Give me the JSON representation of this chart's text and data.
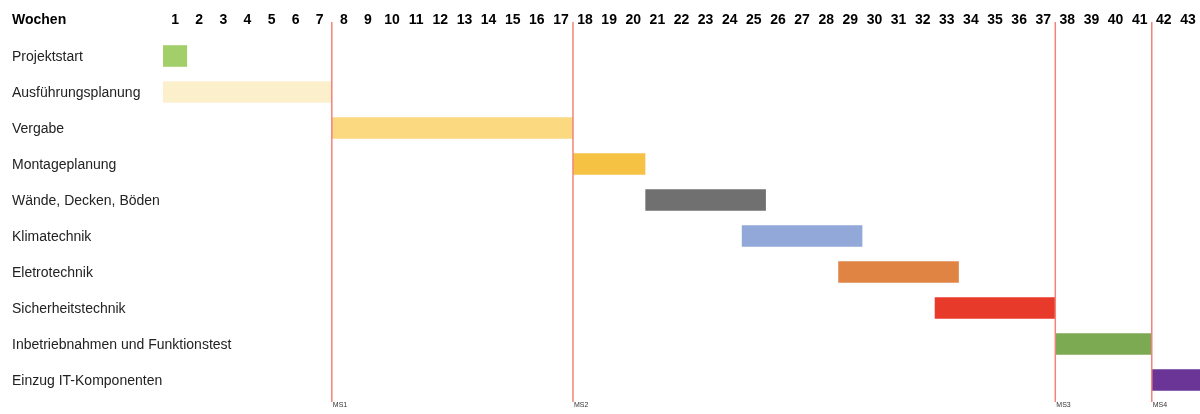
{
  "chart_data": {
    "type": "bar",
    "orientation": "horizontal",
    "xlabel": "Wochen",
    "categories": [
      "Projektstart",
      "Ausführungsplanung",
      "Vergabe",
      "Montageplanung",
      "Wände, Decken, Böden",
      "Klimatechnik",
      "Eletrotechnik",
      "Sicherheitstechnik",
      "Inbetriebnahmen und Funktionstest",
      "Einzug IT-Komponenten"
    ],
    "base": [
      0,
      0,
      7,
      17,
      20,
      24,
      28,
      32,
      37,
      41
    ],
    "values": [
      1,
      7,
      10,
      3,
      5,
      5,
      5,
      5,
      4,
      2
    ],
    "colors": [
      "#a3cf6a",
      "#fcf0cc",
      "#fbd981",
      "#f6c244",
      "#707070",
      "#91a8d8",
      "#e08443",
      "#e83a2b",
      "#7caa52",
      "#6a3596"
    ],
    "xlim": [
      0,
      43
    ],
    "xticks": [
      {
        "value": 0.5,
        "label": "1"
      },
      {
        "value": 1.5,
        "label": "2"
      },
      {
        "value": 2.5,
        "label": "3"
      },
      {
        "value": 3.5,
        "label": "4"
      },
      {
        "value": 4.5,
        "label": "5"
      },
      {
        "value": 5.5,
        "label": "6"
      },
      {
        "value": 6.5,
        "label": "7"
      },
      {
        "value": 7.5,
        "label": "8"
      },
      {
        "value": 8.5,
        "label": "9"
      },
      {
        "value": 9.5,
        "label": "10"
      },
      {
        "value": 10.5,
        "label": "11"
      },
      {
        "value": 11.5,
        "label": "12"
      },
      {
        "value": 12.5,
        "label": "13"
      },
      {
        "value": 13.5,
        "label": "14"
      },
      {
        "value": 14.5,
        "label": "15"
      },
      {
        "value": 15.5,
        "label": "16"
      },
      {
        "value": 16.5,
        "label": "17"
      },
      {
        "value": 17.5,
        "label": "18"
      },
      {
        "value": 18.5,
        "label": "19"
      },
      {
        "value": 19.5,
        "label": "20"
      },
      {
        "value": 20.5,
        "label": "21"
      },
      {
        "value": 21.5,
        "label": "22"
      },
      {
        "value": 22.5,
        "label": "23"
      },
      {
        "value": 23.5,
        "label": "24"
      },
      {
        "value": 24.5,
        "label": "25"
      },
      {
        "value": 25.5,
        "label": "26"
      },
      {
        "value": 26.5,
        "label": "27"
      },
      {
        "value": 27.5,
        "label": "28"
      },
      {
        "value": 28.5,
        "label": "29"
      },
      {
        "value": 29.5,
        "label": "30"
      },
      {
        "value": 30.5,
        "label": "31"
      },
      {
        "value": 31.5,
        "label": "32"
      },
      {
        "value": 32.5,
        "label": "33"
      },
      {
        "value": 33.5,
        "label": "34"
      },
      {
        "value": 34.5,
        "label": "35"
      },
      {
        "value": 35.5,
        "label": "36"
      },
      {
        "value": 36.5,
        "label": "37"
      },
      {
        "value": 37.5,
        "label": "38"
      },
      {
        "value": 38.5,
        "label": "39"
      },
      {
        "value": 39.5,
        "label": "40"
      },
      {
        "value": 40.5,
        "label": "41"
      },
      {
        "value": 41.5,
        "label": "42"
      },
      {
        "value": 42.5,
        "label": "43"
      }
    ],
    "ref_lines": [
      {
        "axis": "x",
        "value": 7,
        "label": "MS1",
        "color": "#f2837a"
      },
      {
        "axis": "x",
        "value": 17,
        "label": "MS2",
        "color": "#f2837a"
      },
      {
        "axis": "x",
        "value": 37,
        "label": "MS3",
        "color": "#f2837a"
      },
      {
        "axis": "x",
        "value": 41,
        "label": "MS4",
        "color": "#f2837a"
      }
    ]
  }
}
